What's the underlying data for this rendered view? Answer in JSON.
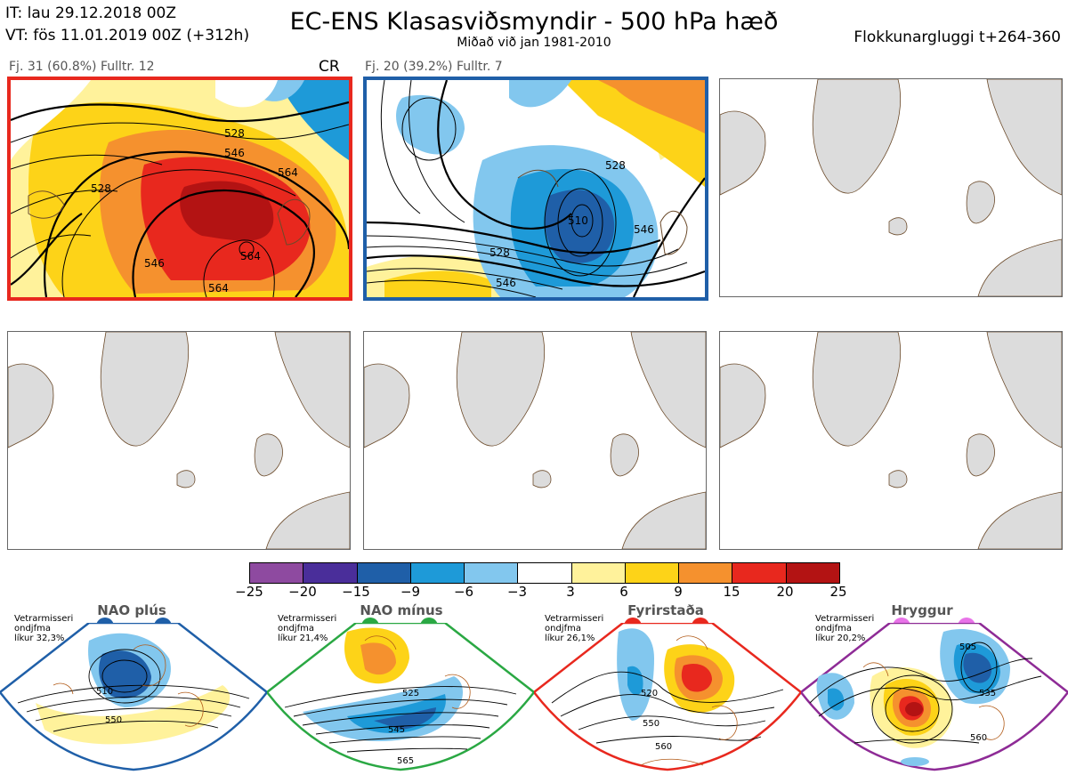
{
  "header": {
    "it_line": "IT: lau 29.12.2018 00Z",
    "vt_line": "VT: fös 11.01.2019 00Z  (+312h)",
    "title": "EC-ENS Klasasviðsmyndir - 500 hPa hæð",
    "subtitle": "Miðað við jan 1981-2010",
    "window": "Flokkunargluggi t+264-360"
  },
  "panels": [
    {
      "label": "Fj. 31 (60.8%)   Fulltr. 12",
      "tag": "CR",
      "frame": "#e8281e",
      "contours": [
        "528",
        "546",
        "564",
        "564",
        "546",
        "528",
        "564"
      ]
    },
    {
      "label": "Fj. 20 (39.2%)   Fulltr. 7",
      "tag": "",
      "frame": "#1f5fa8",
      "contours": [
        "510",
        "528",
        "546",
        "546",
        "528"
      ]
    }
  ],
  "colorbar": {
    "colors": [
      "#8e4aa0",
      "#4a2e9a",
      "#1f5fa8",
      "#1e9ad8",
      "#82c7ee",
      "#ffffff",
      "#fff29b",
      "#fdd318",
      "#f5912e",
      "#e8281e",
      "#b31313"
    ],
    "ticks": [
      "−25",
      "−20",
      "−15",
      "−9",
      "−6",
      "−3",
      "3",
      "6",
      "9",
      "15",
      "20",
      "25"
    ]
  },
  "regimes": [
    {
      "name": "NAO plús",
      "note": "Vetrarmisseri\nondjfma\nlíkur 32,3%",
      "color": "#1f5fa8",
      "labels": [
        "510",
        "550"
      ]
    },
    {
      "name": "NAO mínus",
      "note": "Vetrarmisseri\nondjfma\nlíkur 21,4%",
      "color": "#2aa843",
      "labels": [
        "525",
        "545",
        "565"
      ]
    },
    {
      "name": "Fyrirstaða",
      "note": "Vetrarmisseri\nondjfma\nlíkur 26,1%",
      "color": "#e8281e",
      "labels": [
        "520",
        "550",
        "560"
      ]
    },
    {
      "name": "Hryggur",
      "note": "Vetrarmisseri\nondjfma\nlíkur 20,2%",
      "color": "#8e2b96",
      "labels": [
        "505",
        "535",
        "560"
      ]
    }
  ],
  "regime_dot_colors": [
    "#1f5fa8",
    "#2aa843",
    "#e8281e",
    "#e873e8"
  ]
}
